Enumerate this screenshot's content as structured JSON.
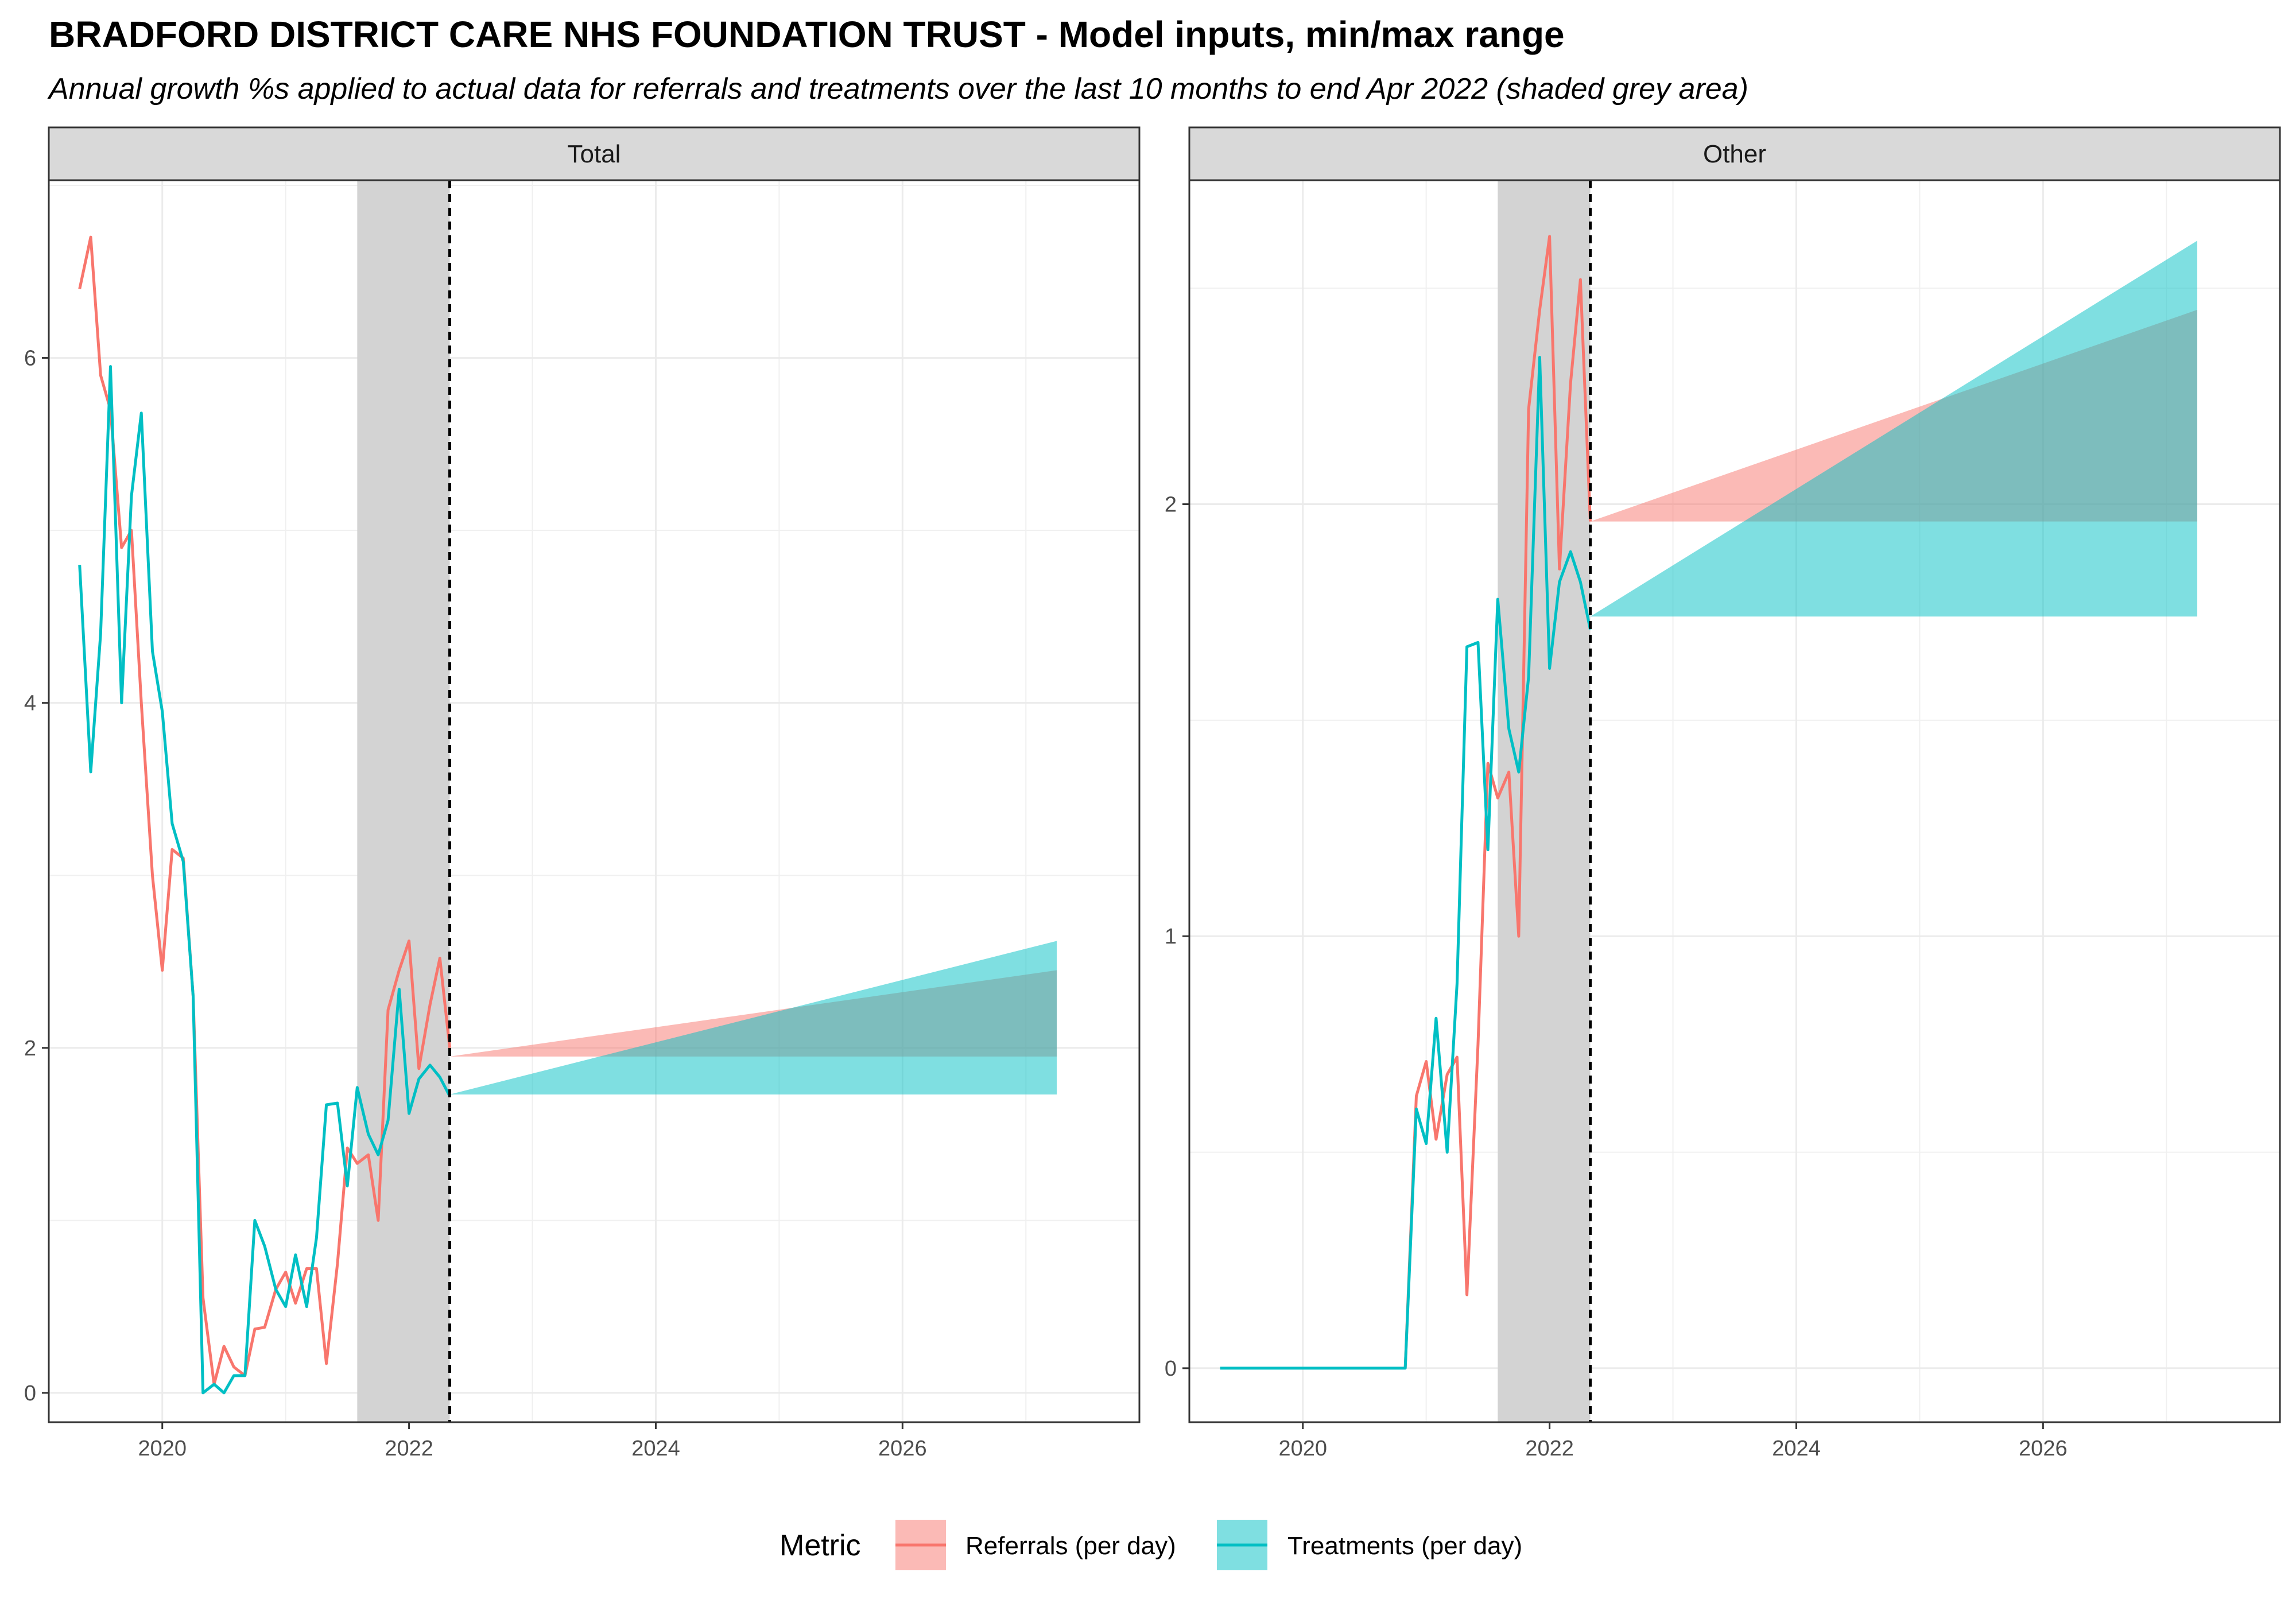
{
  "title": "BRADFORD DISTRICT CARE NHS FOUNDATION TRUST - Model inputs, min/max range",
  "subtitle": "Annual growth %s applied to actual data for referrals and treatments over the last 10 months to end Apr 2022 (shaded grey area)",
  "legend": {
    "title": "Metric",
    "entries": [
      {
        "label": "Referrals (per day)",
        "line_color": "#F8766D",
        "fill_color": "#F8766D"
      },
      {
        "label": "Treatments (per day)",
        "line_color": "#00BFC4",
        "fill_color": "#00BFC4"
      }
    ]
  },
  "chart_data": [
    {
      "type": "line",
      "facet": "Total",
      "xlim": [
        2019.08,
        2027.92
      ],
      "ylim": [
        -0.17,
        7.03
      ],
      "x_ticks": [
        2020,
        2022,
        2024,
        2026
      ],
      "x_tick_labels": [
        "2020",
        "2022",
        "2024",
        "2026"
      ],
      "y_ticks": [
        0,
        2,
        4,
        6
      ],
      "y_tick_labels": [
        "0",
        "2",
        "4",
        "6"
      ],
      "shaded_period": [
        2021.58,
        2022.33
      ],
      "vline_x": 2022.33,
      "series": [
        {
          "name": "Referrals (per day)",
          "x": [
            2019.33,
            2019.42,
            2019.5,
            2019.58,
            2019.67,
            2019.75,
            2019.83,
            2019.92,
            2020.0,
            2020.08,
            2020.17,
            2020.25,
            2020.33,
            2020.42,
            2020.5,
            2020.58,
            2020.67,
            2020.75,
            2020.83,
            2020.92,
            2021.0,
            2021.08,
            2021.17,
            2021.25,
            2021.33,
            2021.42,
            2021.5,
            2021.58,
            2021.67,
            2021.75,
            2021.83,
            2021.92,
            2022.0,
            2022.08,
            2022.17,
            2022.25,
            2022.33
          ],
          "y": [
            6.4,
            6.7,
            5.9,
            5.7,
            4.9,
            5.0,
            4.0,
            3.0,
            2.45,
            3.15,
            3.1,
            2.3,
            0.55,
            0.05,
            0.27,
            0.15,
            0.1,
            0.37,
            0.38,
            0.6,
            0.7,
            0.52,
            0.72,
            0.72,
            0.17,
            0.75,
            1.42,
            1.33,
            1.38,
            1.0,
            2.22,
            2.45,
            2.62,
            1.88,
            2.25,
            2.52,
            2.0
          ]
        },
        {
          "name": "Treatments (per day)",
          "x": [
            2019.33,
            2019.42,
            2019.5,
            2019.58,
            2019.67,
            2019.75,
            2019.83,
            2019.92,
            2020.0,
            2020.08,
            2020.17,
            2020.25,
            2020.33,
            2020.42,
            2020.5,
            2020.58,
            2020.67,
            2020.75,
            2020.83,
            2020.92,
            2021.0,
            2021.08,
            2021.17,
            2021.25,
            2021.33,
            2021.42,
            2021.5,
            2021.58,
            2021.67,
            2021.75,
            2021.83,
            2021.92,
            2022.0,
            2022.08,
            2022.17,
            2022.25,
            2022.33
          ],
          "y": [
            4.8,
            3.6,
            4.4,
            5.95,
            4.0,
            5.2,
            5.68,
            4.3,
            3.95,
            3.3,
            3.08,
            2.3,
            0.0,
            0.05,
            0.0,
            0.1,
            0.1,
            1.0,
            0.85,
            0.6,
            0.5,
            0.8,
            0.5,
            0.9,
            1.67,
            1.68,
            1.2,
            1.77,
            1.5,
            1.38,
            1.58,
            2.34,
            1.62,
            1.82,
            1.9,
            1.83,
            1.72
          ]
        }
      ],
      "ribbons": [
        {
          "name": "Referrals (per day)",
          "x": [
            2022.33,
            2027.25
          ],
          "ymin": [
            1.95,
            1.95
          ],
          "ymax": [
            1.95,
            2.45
          ]
        },
        {
          "name": "Treatments (per day)",
          "x": [
            2022.33,
            2027.25
          ],
          "ymin": [
            1.73,
            1.73
          ],
          "ymax": [
            1.73,
            2.62
          ]
        }
      ]
    },
    {
      "type": "line",
      "facet": "Other",
      "xlim": [
        2019.08,
        2027.92
      ],
      "ylim": [
        -0.125,
        2.75
      ],
      "x_ticks": [
        2020,
        2022,
        2024,
        2026
      ],
      "x_tick_labels": [
        "2020",
        "2022",
        "2024",
        "2026"
      ],
      "y_ticks": [
        0,
        1,
        2
      ],
      "y_tick_labels": [
        "0",
        "1",
        "2"
      ],
      "shaded_period": [
        2021.58,
        2022.33
      ],
      "vline_x": 2022.33,
      "series": [
        {
          "name": "Referrals (per day)",
          "x": [
            2020.83,
            2020.92,
            2021.0,
            2021.08,
            2021.17,
            2021.25,
            2021.33,
            2021.42,
            2021.5,
            2021.58,
            2021.67,
            2021.75,
            2021.83,
            2021.92,
            2022.0,
            2022.08,
            2022.17,
            2022.25,
            2022.33
          ],
          "y": [
            0.0,
            0.63,
            0.71,
            0.53,
            0.68,
            0.72,
            0.17,
            0.75,
            1.4,
            1.32,
            1.38,
            1.0,
            2.22,
            2.45,
            2.62,
            1.85,
            2.28,
            2.52,
            1.96
          ]
        },
        {
          "name": "Treatments (per day)",
          "x": [
            2019.33,
            2019.5,
            2019.75,
            2020.0,
            2020.25,
            2020.5,
            2020.75,
            2020.83,
            2020.92,
            2021.0,
            2021.08,
            2021.17,
            2021.25,
            2021.33,
            2021.42,
            2021.5,
            2021.58,
            2021.67,
            2021.75,
            2021.83,
            2021.92,
            2022.0,
            2022.08,
            2022.17,
            2022.25,
            2022.33
          ],
          "y": [
            0.0,
            0.0,
            0.0,
            0.0,
            0.0,
            0.0,
            0.0,
            0.0,
            0.6,
            0.52,
            0.81,
            0.5,
            0.89,
            1.67,
            1.68,
            1.2,
            1.78,
            1.48,
            1.38,
            1.6,
            2.34,
            1.62,
            1.82,
            1.89,
            1.82,
            1.71
          ]
        }
      ],
      "ribbons": [
        {
          "name": "Referrals (per day)",
          "x": [
            2022.33,
            2027.25
          ],
          "ymin": [
            1.96,
            1.96
          ],
          "ymax": [
            1.96,
            2.45
          ]
        },
        {
          "name": "Treatments (per day)",
          "x": [
            2022.33,
            2027.25
          ],
          "ymin": [
            1.74,
            1.74
          ],
          "ymax": [
            1.74,
            2.61
          ]
        }
      ]
    }
  ]
}
